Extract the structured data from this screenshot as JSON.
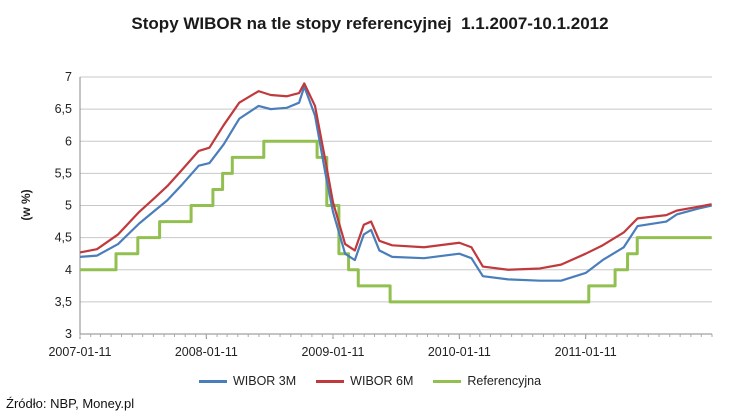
{
  "chart_data": {
    "type": "line",
    "title": "Stopy WIBOR na tle stopy referencyjnej  1.1.2007-10.1.2012",
    "ylabel": "(w %)",
    "xlabel": "",
    "ylim": [
      3,
      7
    ],
    "yticks": [
      "3",
      "3,5",
      "4",
      "4,5",
      "5",
      "5,5",
      "6",
      "6,5",
      "7"
    ],
    "xlim": [
      "2007-01-11",
      "2012-01-11"
    ],
    "xticks": [
      "2007-01-11",
      "2008-01-11",
      "2009-01-11",
      "2010-01-11",
      "2011-01-11"
    ],
    "grid": "horizontal",
    "legend_position": "bottom",
    "source": "Źródło: NBP, Money.pl",
    "series": [
      {
        "name": "WIBOR 3M",
        "color": "#4a7ebb",
        "points": [
          [
            "2007-01-11",
            4.2
          ],
          [
            "2007-03-01",
            4.22
          ],
          [
            "2007-05-01",
            4.4
          ],
          [
            "2007-07-01",
            4.72
          ],
          [
            "2007-08-15",
            4.92
          ],
          [
            "2007-09-20",
            5.08
          ],
          [
            "2007-11-01",
            5.32
          ],
          [
            "2007-12-20",
            5.62
          ],
          [
            "2008-01-20",
            5.66
          ],
          [
            "2008-03-01",
            5.95
          ],
          [
            "2008-04-15",
            6.35
          ],
          [
            "2008-06-10",
            6.55
          ],
          [
            "2008-07-15",
            6.5
          ],
          [
            "2008-08-30",
            6.52
          ],
          [
            "2008-10-05",
            6.6
          ],
          [
            "2008-10-20",
            6.85
          ],
          [
            "2008-11-20",
            6.4
          ],
          [
            "2008-12-20",
            5.5
          ],
          [
            "2009-01-11",
            4.9
          ],
          [
            "2009-02-15",
            4.25
          ],
          [
            "2009-03-15",
            4.15
          ],
          [
            "2009-04-10",
            4.55
          ],
          [
            "2009-05-01",
            4.62
          ],
          [
            "2009-05-25",
            4.3
          ],
          [
            "2009-07-01",
            4.2
          ],
          [
            "2009-10-01",
            4.18
          ],
          [
            "2010-01-11",
            4.25
          ],
          [
            "2010-02-15",
            4.18
          ],
          [
            "2010-03-20",
            3.9
          ],
          [
            "2010-06-01",
            3.85
          ],
          [
            "2010-09-01",
            3.83
          ],
          [
            "2010-11-01",
            3.83
          ],
          [
            "2011-01-11",
            3.95
          ],
          [
            "2011-03-01",
            4.15
          ],
          [
            "2011-05-01",
            4.35
          ],
          [
            "2011-06-10",
            4.68
          ],
          [
            "2011-09-01",
            4.75
          ],
          [
            "2011-10-01",
            4.86
          ],
          [
            "2011-12-01",
            4.95
          ],
          [
            "2012-01-10",
            5.0
          ]
        ]
      },
      {
        "name": "WIBOR 6M",
        "color": "#c0393c",
        "points": [
          [
            "2007-01-11",
            4.27
          ],
          [
            "2007-03-01",
            4.32
          ],
          [
            "2007-05-01",
            4.55
          ],
          [
            "2007-07-01",
            4.9
          ],
          [
            "2007-08-15",
            5.12
          ],
          [
            "2007-09-20",
            5.3
          ],
          [
            "2007-11-01",
            5.55
          ],
          [
            "2007-12-20",
            5.85
          ],
          [
            "2008-01-20",
            5.9
          ],
          [
            "2008-03-01",
            6.25
          ],
          [
            "2008-04-15",
            6.6
          ],
          [
            "2008-06-10",
            6.78
          ],
          [
            "2008-07-15",
            6.72
          ],
          [
            "2008-08-30",
            6.7
          ],
          [
            "2008-10-05",
            6.75
          ],
          [
            "2008-10-20",
            6.9
          ],
          [
            "2008-11-20",
            6.55
          ],
          [
            "2008-12-20",
            5.7
          ],
          [
            "2009-01-11",
            5.05
          ],
          [
            "2009-02-15",
            4.4
          ],
          [
            "2009-03-15",
            4.3
          ],
          [
            "2009-04-10",
            4.7
          ],
          [
            "2009-05-01",
            4.75
          ],
          [
            "2009-05-25",
            4.45
          ],
          [
            "2009-07-01",
            4.38
          ],
          [
            "2009-10-01",
            4.35
          ],
          [
            "2010-01-11",
            4.42
          ],
          [
            "2010-02-15",
            4.35
          ],
          [
            "2010-03-20",
            4.05
          ],
          [
            "2010-06-01",
            4.0
          ],
          [
            "2010-09-01",
            4.02
          ],
          [
            "2010-11-01",
            4.08
          ],
          [
            "2011-01-11",
            4.25
          ],
          [
            "2011-03-01",
            4.38
          ],
          [
            "2011-05-01",
            4.58
          ],
          [
            "2011-06-10",
            4.8
          ],
          [
            "2011-09-01",
            4.85
          ],
          [
            "2011-10-01",
            4.92
          ],
          [
            "2011-12-01",
            4.98
          ],
          [
            "2012-01-10",
            5.02
          ]
        ]
      },
      {
        "name": "Referencyjna",
        "color": "#92c050",
        "step": true,
        "points": [
          [
            "2007-01-11",
            4.0
          ],
          [
            "2007-04-25",
            4.25
          ],
          [
            "2007-06-27",
            4.5
          ],
          [
            "2007-08-29",
            4.75
          ],
          [
            "2007-11-28",
            5.0
          ],
          [
            "2008-01-30",
            5.25
          ],
          [
            "2008-02-27",
            5.5
          ],
          [
            "2008-03-26",
            5.75
          ],
          [
            "2008-06-25",
            6.0
          ],
          [
            "2008-11-26",
            5.75
          ],
          [
            "2008-12-24",
            5.0
          ],
          [
            "2009-01-28",
            4.25
          ],
          [
            "2009-02-25",
            4.0
          ],
          [
            "2009-03-25",
            3.75
          ],
          [
            "2009-06-25",
            3.5
          ],
          [
            "2011-01-20",
            3.75
          ],
          [
            "2011-04-06",
            4.0
          ],
          [
            "2011-05-12",
            4.25
          ],
          [
            "2011-06-09",
            4.5
          ],
          [
            "2012-01-10",
            4.5
          ]
        ]
      }
    ]
  }
}
